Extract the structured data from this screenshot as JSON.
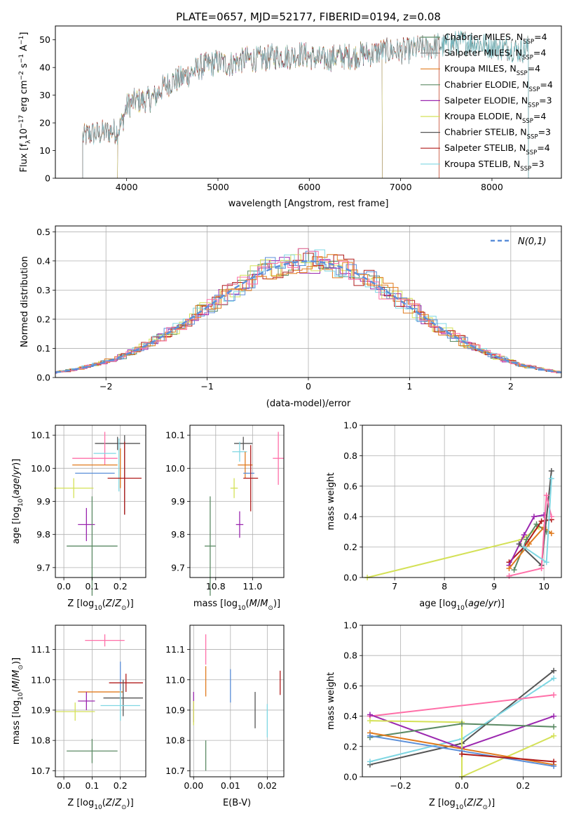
{
  "figure": {
    "title": "PLATE=0657, MJD=52177, FIBERID=0194, z=0.08"
  },
  "chart_data": [
    {
      "id": "spectrum",
      "type": "line",
      "title": "PLATE=0657, MJD=52177, FIBERID=0194, z=0.08",
      "xlabel": "wavelength [Angstrom, rest frame]",
      "ylabel": "Flux [f_λ 10^-17 erg cm^-2 s^-1 A^-1]",
      "xlim": [
        3220,
        8760
      ],
      "ylim": [
        0,
        55
      ],
      "xticks": [
        4000,
        5000,
        6000,
        7000,
        8000
      ],
      "yticks": [
        0,
        10,
        20,
        30,
        40,
        50
      ],
      "legend_position": "top-right",
      "grid": false,
      "continuum": [
        [
          3520,
          15
        ],
        [
          3600,
          16
        ],
        [
          3700,
          16
        ],
        [
          3800,
          17
        ],
        [
          3900,
          17
        ],
        [
          3950,
          20
        ],
        [
          4000,
          26
        ],
        [
          4100,
          28
        ],
        [
          4200,
          28
        ],
        [
          4300,
          29
        ],
        [
          4400,
          33
        ],
        [
          4500,
          35
        ],
        [
          4600,
          36
        ],
        [
          4700,
          38
        ],
        [
          4800,
          40
        ],
        [
          4900,
          41
        ],
        [
          5000,
          42
        ],
        [
          5100,
          41
        ],
        [
          5200,
          42
        ],
        [
          5300,
          43
        ],
        [
          5400,
          43
        ],
        [
          5500,
          43
        ],
        [
          5600,
          44
        ],
        [
          5700,
          44
        ],
        [
          5800,
          44
        ],
        [
          5900,
          45
        ],
        [
          6000,
          44
        ],
        [
          6100,
          43
        ],
        [
          6200,
          43
        ],
        [
          6300,
          44
        ],
        [
          6400,
          44
        ],
        [
          6500,
          44
        ],
        [
          6600,
          45
        ],
        [
          6700,
          45
        ],
        [
          6800,
          46
        ],
        [
          6900,
          46
        ],
        [
          7000,
          46
        ],
        [
          7100,
          46
        ],
        [
          7200,
          47
        ],
        [
          7300,
          47
        ],
        [
          7400,
          48
        ],
        [
          7500,
          48
        ],
        [
          7600,
          49
        ],
        [
          7700,
          49
        ],
        [
          7800,
          49
        ],
        [
          7900,
          48
        ],
        [
          8000,
          48
        ],
        [
          8100,
          47
        ],
        [
          8200,
          47
        ],
        [
          8300,
          46
        ],
        [
          8400,
          47
        ]
      ],
      "series": [
        {
          "name": "Chabrier MILES, N_SSP=4",
          "label_main": "Chabrier MILES, N",
          "label_sub": "SSP",
          "label_end": "=4",
          "color": "#5b8a64",
          "xrange": [
            3520,
            8400
          ]
        },
        {
          "name": "Salpeter MILES, N_SSP=4",
          "label_main": "Salpeter MILES, N",
          "label_sub": "SSP",
          "label_end": "=4",
          "color": "#8a8a8a",
          "xrange": [
            3520,
            8400
          ]
        },
        {
          "name": "Kroupa MILES, N_SSP=4",
          "label_main": "Kroupa MILES, N",
          "label_sub": "SSP",
          "label_end": "=4",
          "color": "#e07b1f",
          "xrange": [
            3520,
            7420
          ]
        },
        {
          "name": "Chabrier ELODIE, N_SSP=4",
          "label_main": "Chabrier ELODIE, N",
          "label_sub": "SSP",
          "label_end": "=4",
          "color": "#5b8a64",
          "xrange": [
            3900,
            6800
          ]
        },
        {
          "name": "Salpeter ELODIE, N_SSP=3",
          "label_main": "Salpeter ELODIE, N",
          "label_sub": "SSP",
          "label_end": "=3",
          "color": "#9b27af",
          "xrange": [
            3900,
            6800
          ]
        },
        {
          "name": "Kroupa ELODIE, N_SSP=4",
          "label_main": "Kroupa ELODIE, N",
          "label_sub": "SSP",
          "label_end": "=4",
          "color": "#d4e157",
          "xrange": [
            3900,
            6800
          ]
        },
        {
          "name": "Chabrier STELIB, N_SSP=3",
          "label_main": "Chabrier STELIB, N",
          "label_sub": "SSP",
          "label_end": "=3",
          "color": "#555555",
          "xrange": [
            3520,
            8400
          ]
        },
        {
          "name": "Salpeter STELIB, N_SSP=4",
          "label_main": "Salpeter STELIB, N",
          "label_sub": "SSP",
          "label_end": "=4",
          "color": "#b01c1c",
          "xrange": [
            3520,
            7420
          ]
        },
        {
          "name": "Kroupa STELIB, N_SSP=3",
          "label_main": "Kroupa STELIB, N",
          "label_sub": "SSP",
          "label_end": "=3",
          "color": "#7fd7e3",
          "xrange": [
            3520,
            8400
          ]
        }
      ]
    },
    {
      "id": "residuals",
      "type": "line",
      "xlabel": "(data-model)/error",
      "ylabel": "Normed distribution",
      "xlim": [
        -2.5,
        2.5
      ],
      "ylim": [
        0,
        0.52
      ],
      "xticks": [
        -2,
        -1,
        0,
        1,
        2
      ],
      "yticks": [
        0.0,
        0.1,
        0.2,
        0.3,
        0.4,
        0.5
      ],
      "grid": true,
      "legend_position": "top-right",
      "reference": {
        "name": "N(0,1)",
        "color": "#5b8fd9",
        "style": "dashed",
        "mean": 0,
        "sigma": 1
      },
      "bin_width": 0.1,
      "hist_colors": [
        "#5b8a64",
        "#9b27af",
        "#d4e157",
        "#e07b1f",
        "#b01c1c",
        "#7fd7e3",
        "#5b8fd9",
        "#e07b1f",
        "#ff6fa8"
      ]
    },
    {
      "id": "age_vs_Z",
      "type": "scatter",
      "xlabel": "Z [log10(Z/Z⊙)]",
      "ylabel": "age [log10(age/yr)]",
      "xlim": [
        -0.03,
        0.29
      ],
      "ylim": [
        9.67,
        10.13
      ],
      "xticks": [
        0.0,
        0.1,
        0.2
      ],
      "yticks": [
        9.7,
        9.8,
        9.9,
        10.0,
        10.1
      ],
      "grid": true,
      "points": [
        {
          "x": 0.19,
          "y": 10.075,
          "xerr": 0.08,
          "yerr": 0.02,
          "color": "#555555"
        },
        {
          "x": 0.145,
          "y": 10.06,
          "xerr": 0.0,
          "yerr": 0.05,
          "color": "#ff6fa8"
        },
        {
          "x": 0.11,
          "y": 10.03,
          "xerr": 0.08,
          "yerr": 0.0,
          "color": "#ff6fa8"
        },
        {
          "x": 0.145,
          "y": 10.045,
          "xerr": 0.04,
          "yerr": 0.0,
          "color": "#7fd7e3"
        },
        {
          "x": 0.195,
          "y": 10.01,
          "xerr": 0.0,
          "yerr": 0.08,
          "color": "#7fd7e3"
        },
        {
          "x": 0.11,
          "y": 10.01,
          "xerr": 0.08,
          "yerr": 0.0,
          "color": "#e07b1f"
        },
        {
          "x": 0.2,
          "y": 10.0,
          "xerr": 0.0,
          "yerr": 0.06,
          "color": "#e07b1f"
        },
        {
          "x": 0.11,
          "y": 9.985,
          "xerr": 0.07,
          "yerr": 0.0,
          "color": "#5b8fd9"
        },
        {
          "x": 0.215,
          "y": 9.98,
          "xerr": 0.0,
          "yerr": 0.12,
          "color": "#555555"
        },
        {
          "x": 0.215,
          "y": 9.97,
          "xerr": 0.06,
          "yerr": 0.11,
          "color": "#b01c1c"
        },
        {
          "x": 0.035,
          "y": 9.94,
          "xerr": 0.07,
          "yerr": 0.03,
          "color": "#d4e157"
        },
        {
          "x": 0.08,
          "y": 9.83,
          "xerr": 0.03,
          "yerr": 0.05,
          "color": "#9b27af"
        },
        {
          "x": 0.1,
          "y": 9.765,
          "xerr": 0.09,
          "yerr": 0.15,
          "color": "#5b8a64"
        }
      ]
    },
    {
      "id": "age_vs_mass",
      "type": "scatter",
      "xlabel": "mass [log10(M/M⊙)]",
      "ylabel": "",
      "xlim": [
        10.66,
        11.17
      ],
      "ylim": [
        9.67,
        10.13
      ],
      "xticks": [
        10.8,
        11.0
      ],
      "yticks": [
        9.7,
        9.8,
        9.9,
        10.0,
        10.1
      ],
      "grid": true,
      "points": [
        {
          "x": 10.95,
          "y": 10.075,
          "xerr": 0.05,
          "yerr": 0.02,
          "color": "#555555"
        },
        {
          "x": 11.14,
          "y": 10.03,
          "xerr": 0.03,
          "yerr": 0.08,
          "color": "#ff6fa8"
        },
        {
          "x": 10.93,
          "y": 10.05,
          "xerr": 0.04,
          "yerr": 0.03,
          "color": "#7fd7e3"
        },
        {
          "x": 10.96,
          "y": 10.01,
          "xerr": 0.04,
          "yerr": 0.04,
          "color": "#e07b1f"
        },
        {
          "x": 10.98,
          "y": 9.985,
          "xerr": 0.03,
          "yerr": 0.0,
          "color": "#5b8fd9"
        },
        {
          "x": 10.99,
          "y": 9.97,
          "xerr": 0.04,
          "yerr": 0.1,
          "color": "#b01c1c"
        },
        {
          "x": 10.9,
          "y": 9.94,
          "xerr": 0.02,
          "yerr": 0.03,
          "color": "#d4e157"
        },
        {
          "x": 10.93,
          "y": 9.83,
          "xerr": 0.02,
          "yerr": 0.04,
          "color": "#9b27af"
        },
        {
          "x": 10.77,
          "y": 9.765,
          "xerr": 0.03,
          "yerr": 0.15,
          "color": "#5b8a64"
        }
      ]
    },
    {
      "id": "weight_vs_age",
      "type": "line",
      "xlabel": "age [log10(age/yr)]",
      "ylabel": "mass weight",
      "xlim": [
        6.35,
        10.35
      ],
      "ylim": [
        0,
        1.0
      ],
      "xticks": [
        7,
        8,
        9,
        10
      ],
      "yticks": [
        0.0,
        0.2,
        0.4,
        0.6,
        0.8,
        1.0
      ],
      "grid": true,
      "series": [
        {
          "color": "#d4e157",
          "points": [
            [
              6.45,
              0.0
            ],
            [
              9.55,
              0.25
            ],
            [
              9.9,
              0.33
            ]
          ]
        },
        {
          "color": "#5b8a64",
          "points": [
            [
              9.4,
              0.05
            ],
            [
              9.65,
              0.25
            ],
            [
              9.85,
              0.35
            ],
            [
              10.05,
              0.3
            ]
          ]
        },
        {
          "color": "#b01c1c",
          "points": [
            [
              9.3,
              0.1
            ],
            [
              9.6,
              0.2
            ],
            [
              9.95,
              0.37
            ],
            [
              10.15,
              0.38
            ]
          ]
        },
        {
          "color": "#9b27af",
          "points": [
            [
              9.3,
              0.08
            ],
            [
              9.6,
              0.28
            ],
            [
              9.8,
              0.4
            ],
            [
              10.0,
              0.41
            ]
          ]
        },
        {
          "color": "#e07b1f",
          "points": [
            [
              9.3,
              0.06
            ],
            [
              9.7,
              0.22
            ],
            [
              10.0,
              0.33
            ],
            [
              10.15,
              0.29
            ]
          ]
        },
        {
          "color": "#555555",
          "points": [
            [
              9.5,
              0.22
            ],
            [
              9.95,
              0.08
            ],
            [
              10.15,
              0.7
            ]
          ]
        },
        {
          "color": "#ff6fa8",
          "points": [
            [
              9.3,
              0.01
            ],
            [
              9.95,
              0.06
            ],
            [
              10.05,
              0.54
            ],
            [
              10.15,
              0.4
            ]
          ]
        },
        {
          "color": "#7fd7e3",
          "points": [
            [
              9.6,
              0.2
            ],
            [
              10.05,
              0.1
            ],
            [
              10.15,
              0.65
            ]
          ]
        }
      ]
    },
    {
      "id": "mass_vs_Z",
      "type": "scatter",
      "xlabel": "Z [log10(Z/Z⊙)]",
      "ylabel": "mass [log10(M/M⊙)]",
      "xlim": [
        -0.03,
        0.29
      ],
      "ylim": [
        10.68,
        11.18
      ],
      "xticks": [
        0.0,
        0.1,
        0.2
      ],
      "yticks": [
        10.7,
        10.8,
        10.9,
        11.0,
        11.1
      ],
      "grid": true,
      "points": [
        {
          "x": 0.145,
          "y": 11.13,
          "xerr": 0.07,
          "yerr": 0.02,
          "color": "#ff6fa8"
        },
        {
          "x": 0.2,
          "y": 11.0,
          "xerr": 0.0,
          "yerr": 0.06,
          "color": "#5b8fd9"
        },
        {
          "x": 0.13,
          "y": 10.96,
          "xerr": 0.08,
          "yerr": 0.0,
          "color": "#e07b1f"
        },
        {
          "x": 0.22,
          "y": 10.99,
          "xerr": 0.06,
          "yerr": 0.03,
          "color": "#b01c1c"
        },
        {
          "x": 0.21,
          "y": 10.94,
          "xerr": 0.07,
          "yerr": 0.06,
          "color": "#555555"
        },
        {
          "x": 0.2,
          "y": 10.915,
          "xerr": 0.07,
          "yerr": 0.05,
          "color": "#7fd7e3"
        },
        {
          "x": 0.08,
          "y": 10.93,
          "xerr": 0.03,
          "yerr": 0.03,
          "color": "#9b27af"
        },
        {
          "x": 0.04,
          "y": 10.895,
          "xerr": 0.07,
          "yerr": 0.03,
          "color": "#d4e157"
        },
        {
          "x": 0.1,
          "y": 10.765,
          "xerr": 0.09,
          "yerr": 0.04,
          "color": "#5b8a64"
        }
      ]
    },
    {
      "id": "mass_vs_ebv",
      "type": "scatter",
      "xlabel": "E(B-V)",
      "ylabel": "",
      "xlim": [
        -0.001,
        0.0245
      ],
      "ylim": [
        10.68,
        11.18
      ],
      "xticks": [
        0.0,
        0.01,
        0.02
      ],
      "yticks": [
        10.7,
        10.8,
        10.9,
        11.0,
        11.1
      ],
      "grid": true,
      "points": [
        {
          "x": 0.0033,
          "y": 11.1,
          "xerr": 0,
          "yerr": 0.05,
          "color": "#ff6fa8"
        },
        {
          "x": 0.0033,
          "y": 10.995,
          "xerr": 0,
          "yerr": 0.05,
          "color": "#e07b1f"
        },
        {
          "x": 0.01,
          "y": 10.98,
          "xerr": 0,
          "yerr": 0.055,
          "color": "#5b8fd9"
        },
        {
          "x": 0.0235,
          "y": 10.99,
          "xerr": 0,
          "yerr": 0.04,
          "color": "#b01c1c"
        },
        {
          "x": 0.0167,
          "y": 10.9,
          "xerr": 0,
          "yerr": 0.06,
          "color": "#555555"
        },
        {
          "x": 0.02,
          "y": 10.865,
          "xerr": 0,
          "yerr": 0.055,
          "color": "#7fd7e3"
        },
        {
          "x": 0.0,
          "y": 10.91,
          "xerr": 0,
          "yerr": 0.05,
          "color": "#9b27af"
        },
        {
          "x": 0.0,
          "y": 10.89,
          "xerr": 0,
          "yerr": 0.04,
          "color": "#d4e157"
        },
        {
          "x": 0.0033,
          "y": 10.75,
          "xerr": 0,
          "yerr": 0.05,
          "color": "#5b8a64"
        }
      ]
    },
    {
      "id": "weight_vs_Z",
      "type": "line",
      "xlabel": "Z [log10(Z/Z⊙)]",
      "ylabel": "mass weight",
      "xlim": [
        -0.325,
        0.325
      ],
      "ylim": [
        0,
        1.0
      ],
      "xticks": [
        -0.2,
        0.0,
        0.2
      ],
      "yticks": [
        0.0,
        0.2,
        0.4,
        0.6,
        0.8,
        1.0
      ],
      "grid": true,
      "series": [
        {
          "color": "#555555",
          "points": [
            [
              -0.3,
              0.08
            ],
            [
              0.0,
              0.22
            ],
            [
              0.3,
              0.7
            ]
          ]
        },
        {
          "color": "#7fd7e3",
          "points": [
            [
              -0.3,
              0.1
            ],
            [
              0.0,
              0.25
            ],
            [
              0.3,
              0.65
            ]
          ]
        },
        {
          "color": "#ff6fa8",
          "points": [
            [
              -0.3,
              0.4
            ],
            [
              0.3,
              0.54
            ]
          ]
        },
        {
          "color": "#9b27af",
          "points": [
            [
              -0.3,
              0.41
            ],
            [
              0.0,
              0.19
            ],
            [
              0.3,
              0.4
            ]
          ]
        },
        {
          "color": "#d4e157",
          "points": [
            [
              -0.3,
              0.37
            ],
            [
              0.0,
              0.36
            ],
            [
              0.0,
              0.0
            ],
            [
              0.3,
              0.27
            ]
          ]
        },
        {
          "color": "#5b8a64",
          "points": [
            [
              -0.3,
              0.26
            ],
            [
              0.0,
              0.35
            ],
            [
              0.3,
              0.33
            ]
          ]
        },
        {
          "color": "#e07b1f",
          "points": [
            [
              -0.3,
              0.29
            ],
            [
              0.3,
              0.08
            ]
          ]
        },
        {
          "color": "#5b8fd9",
          "points": [
            [
              -0.3,
              0.27
            ],
            [
              0.0,
              0.17
            ],
            [
              0.3,
              0.07
            ]
          ]
        },
        {
          "color": "#b01c1c",
          "points": [
            [
              0.0,
              0.15
            ],
            [
              0.3,
              0.1
            ]
          ]
        }
      ]
    }
  ]
}
